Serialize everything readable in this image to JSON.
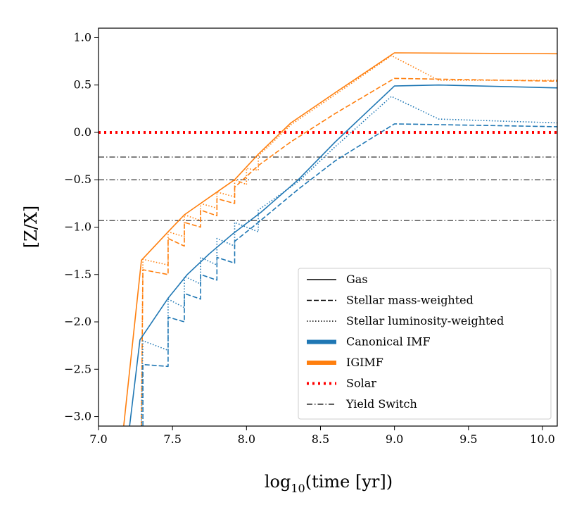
{
  "chart_data": {
    "type": "line",
    "title": "",
    "xlabel_main": "log",
    "xlabel_sub": "10",
    "xlabel_rest": "(time [yr])",
    "ylabel": "[Z/X]",
    "xlim": [
      7.0,
      10.1
    ],
    "ylim": [
      -3.1,
      1.1
    ],
    "xticks": [
      7.0,
      7.5,
      8.0,
      8.5,
      9.0,
      9.5,
      10.0
    ],
    "xtick_labels": [
      "7.0",
      "7.5",
      "8.0",
      "8.5",
      "9.0",
      "9.5",
      "10.0"
    ],
    "yticks": [
      1.0,
      0.5,
      0.0,
      -0.5,
      -1.0,
      -1.5,
      -2.0,
      -2.5,
      -3.0
    ],
    "ytick_labels": [
      "1.0",
      "0.5",
      "0.0",
      "−0.5",
      "−1.0",
      "−1.5",
      "−2.0",
      "−2.5",
      "−3.0"
    ],
    "colors": {
      "canonical": "#1f77b4",
      "igimf": "#ff7f0e",
      "solar": "#ff0000",
      "switch": "#000000"
    },
    "hlines": {
      "solar": 0.0,
      "yield_switch": [
        -0.26,
        -0.5,
        -0.93
      ]
    },
    "series": [
      {
        "name": "IGIMF Gas",
        "color": "igimf",
        "style": "solid",
        "x": [
          7.17,
          7.29,
          7.47,
          7.58,
          7.69,
          7.8,
          7.92,
          8.08,
          8.3,
          8.6,
          9.0,
          10.1
        ],
        "y": [
          -3.1,
          -1.35,
          -1.05,
          -0.87,
          -0.75,
          -0.63,
          -0.5,
          -0.23,
          0.1,
          0.42,
          0.84,
          0.83
        ]
      },
      {
        "name": "IGIMF Stellar luminosity-weighted",
        "color": "igimf",
        "style": "dotted",
        "x": [
          7.29,
          7.3,
          7.47,
          7.47,
          7.58,
          7.58,
          7.69,
          7.69,
          7.8,
          7.8,
          7.92,
          7.92,
          8.0,
          8.0,
          8.08,
          8.08,
          8.3,
          8.6,
          8.98,
          9.3,
          10.1
        ],
        "y": [
          -3.1,
          -1.34,
          -1.4,
          -1.05,
          -1.1,
          -0.87,
          -0.93,
          -0.75,
          -0.8,
          -0.63,
          -0.68,
          -0.5,
          -0.55,
          -0.38,
          -0.4,
          -0.25,
          0.08,
          0.4,
          0.81,
          0.55,
          0.55
        ]
      },
      {
        "name": "IGIMF Stellar mass-weighted",
        "color": "igimf",
        "style": "dashed",
        "x": [
          7.29,
          7.3,
          7.47,
          7.47,
          7.58,
          7.58,
          7.69,
          7.69,
          7.8,
          7.8,
          7.92,
          7.92,
          8.08,
          8.3,
          8.6,
          9.0,
          10.1
        ],
        "y": [
          -3.1,
          -1.45,
          -1.5,
          -1.12,
          -1.2,
          -0.95,
          -1.0,
          -0.82,
          -0.88,
          -0.7,
          -0.75,
          -0.58,
          -0.35,
          -0.1,
          0.2,
          0.57,
          0.54
        ]
      },
      {
        "name": "Canonical Gas",
        "color": "canonical",
        "style": "solid",
        "x": [
          7.21,
          7.28,
          7.47,
          7.6,
          7.75,
          7.9,
          8.1,
          8.35,
          8.6,
          9.0,
          9.3,
          10.1
        ],
        "y": [
          -3.1,
          -2.19,
          -1.75,
          -1.5,
          -1.28,
          -1.08,
          -0.84,
          -0.5,
          -0.1,
          0.49,
          0.5,
          0.47
        ]
      },
      {
        "name": "Canonical Stellar luminosity-weighted",
        "color": "canonical",
        "style": "dotted",
        "x": [
          7.29,
          7.3,
          7.47,
          7.47,
          7.58,
          7.58,
          7.69,
          7.69,
          7.8,
          7.8,
          7.92,
          7.92,
          8.08,
          8.08,
          8.35,
          8.6,
          8.98,
          9.3,
          10.1
        ],
        "y": [
          -3.1,
          -2.2,
          -2.3,
          -1.76,
          -1.85,
          -1.52,
          -1.6,
          -1.32,
          -1.4,
          -1.12,
          -1.2,
          -0.95,
          -1.05,
          -0.82,
          -0.52,
          -0.15,
          0.38,
          0.14,
          0.1
        ]
      },
      {
        "name": "Canonical Stellar mass-weighted",
        "color": "canonical",
        "style": "dashed",
        "x": [
          7.3,
          7.3,
          7.47,
          7.47,
          7.58,
          7.58,
          7.69,
          7.69,
          7.8,
          7.8,
          7.92,
          7.92,
          8.08,
          8.35,
          8.6,
          9.0,
          10.1
        ],
        "y": [
          -3.1,
          -2.45,
          -2.47,
          -1.95,
          -2.0,
          -1.7,
          -1.76,
          -1.5,
          -1.56,
          -1.32,
          -1.38,
          -1.15,
          -0.95,
          -0.6,
          -0.3,
          0.09,
          0.06
        ]
      }
    ],
    "legend": {
      "location": "lower-right",
      "entries": [
        {
          "label": "Gas",
          "color": "switch",
          "style": "solid",
          "width": 1.5
        },
        {
          "label": "Stellar mass-weighted",
          "color": "switch",
          "style": "dashed",
          "width": 1.5
        },
        {
          "label": "Stellar luminosity-weighted",
          "color": "switch",
          "style": "dotted",
          "width": 1.5
        },
        {
          "label": "Canonical IMF",
          "color": "canonical",
          "style": "solid",
          "width": 6
        },
        {
          "label": "IGIMF",
          "color": "igimf",
          "style": "solid",
          "width": 6
        },
        {
          "label": "Solar",
          "color": "solar",
          "style": "dotted",
          "width": 4
        },
        {
          "label": "Yield Switch",
          "color": "switch",
          "style": "dashdot",
          "width": 1.2
        }
      ]
    }
  }
}
